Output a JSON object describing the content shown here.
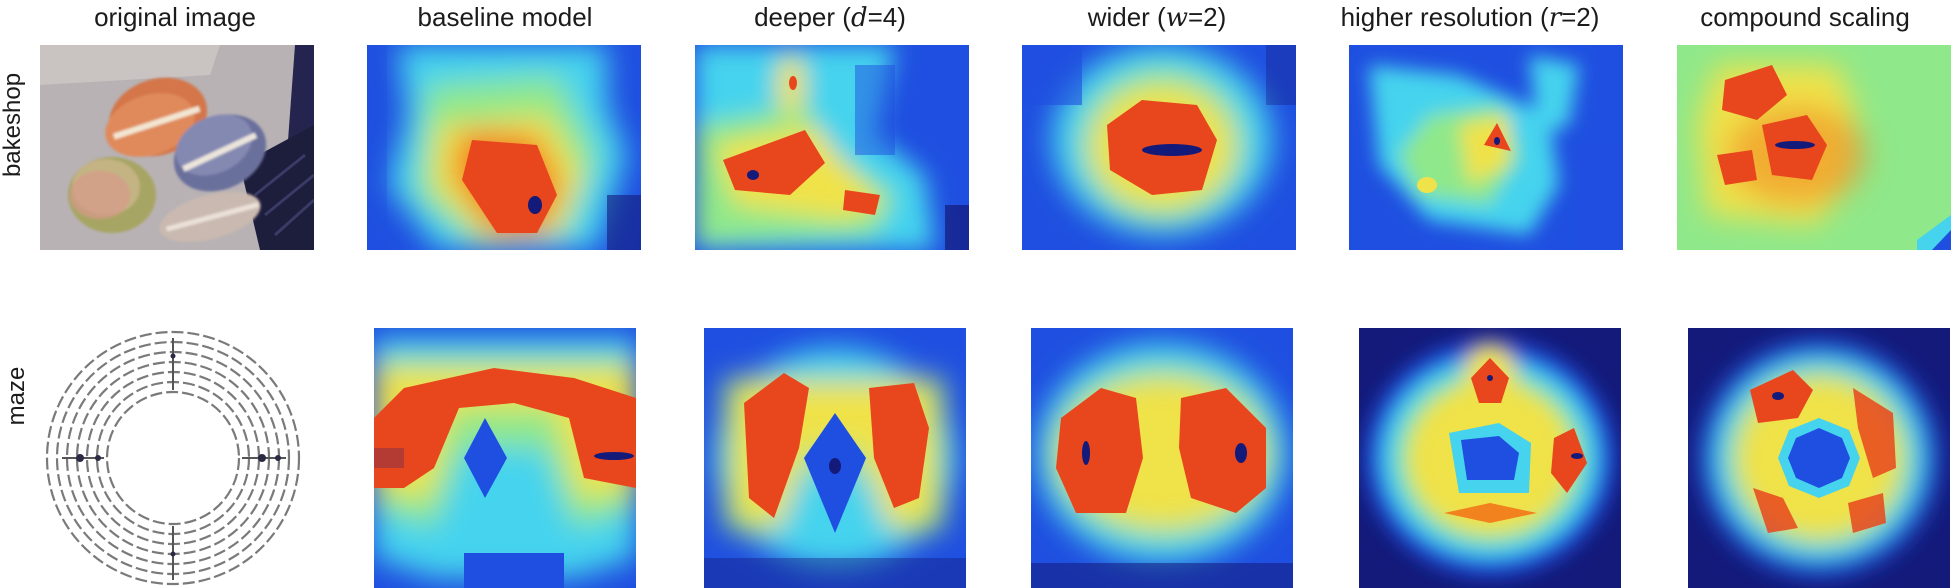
{
  "columns": [
    {
      "label": "original image"
    },
    {
      "label": "baseline model"
    },
    {
      "label_pre": "deeper (",
      "var": "d",
      "label_post": "=4)"
    },
    {
      "label_pre": "wider (",
      "var": "w",
      "label_post": "=2)"
    },
    {
      "label_pre": "higher resolution (",
      "var": "r",
      "label_post": "=2)"
    },
    {
      "label": "compound scaling"
    }
  ],
  "rows": [
    {
      "label": "bakeshop"
    },
    {
      "label": "maze"
    }
  ],
  "colors": {
    "heat_base": "#1f4fe0",
    "heat_dark": "#141a7a",
    "heat_cyan": "#45d3ee",
    "heat_green": "#8fe88a",
    "heat_yellow": "#f0e24a",
    "heat_orange": "#f2821e",
    "heat_red": "#e8461c"
  }
}
